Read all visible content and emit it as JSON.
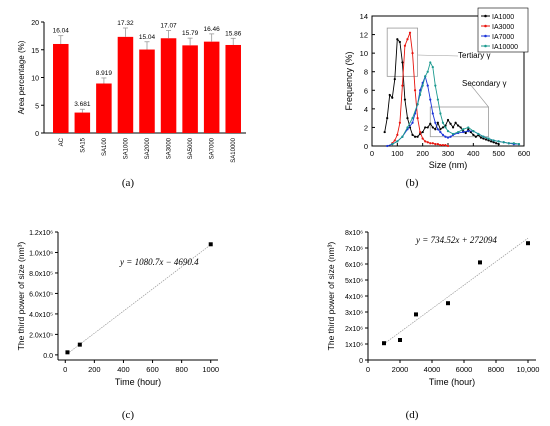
{
  "panels": {
    "a": "(a)",
    "b": "(b)",
    "c": "(c)",
    "d": "(d)"
  },
  "colors": {
    "bar": "#ff0000",
    "ia1000": "#000000",
    "ia3000": "#e8150e",
    "ia7000": "#1c35d8",
    "ia10000": "#1b9a8f",
    "trend": "#999999"
  },
  "chart_data": [
    {
      "id": "a",
      "type": "bar",
      "ylabel": "Area percentage (%)",
      "ylim": [
        0,
        20
      ],
      "yticks": [
        "0",
        "5",
        "10",
        "15",
        "20"
      ],
      "categories": [
        "AC",
        "SA15",
        "SA100",
        "SA1000",
        "SA2000",
        "SA3000",
        "SA5000",
        "SA7000",
        "SA10000"
      ],
      "values": [
        16.04,
        3.681,
        8.919,
        17.32,
        15.04,
        17.07,
        15.79,
        16.46,
        15.86
      ],
      "value_labels": [
        "16.04",
        "3.681",
        "8.919",
        "17.32",
        "15.04",
        "17.07",
        "15.79",
        "16.46",
        "15.86"
      ],
      "errors": [
        1.5,
        0.6,
        1.0,
        1.6,
        1.4,
        1.4,
        1.3,
        1.4,
        1.2
      ]
    },
    {
      "id": "b",
      "type": "line",
      "xlabel": "Size (nm)",
      "ylabel": "Frequency (%)",
      "xlim": [
        0,
        600
      ],
      "ylim": [
        0,
        14
      ],
      "xticks": [
        "0",
        "100",
        "200",
        "300",
        "400",
        "500",
        "600"
      ],
      "yticks": [
        "0",
        "2",
        "4",
        "6",
        "8",
        "10",
        "12",
        "14"
      ],
      "legend": "top-right",
      "series": [
        {
          "name": "IA1000",
          "x": [
            50,
            60,
            70,
            80,
            90,
            100,
            110,
            120,
            130,
            140,
            150,
            160,
            170,
            180,
            190,
            200,
            210,
            220,
            230,
            240,
            250,
            260,
            270,
            280,
            290,
            300,
            310,
            320,
            330,
            340,
            350,
            360,
            370,
            380,
            390,
            400,
            410,
            420,
            430,
            440,
            450,
            460,
            470,
            480,
            490,
            500
          ],
          "y": [
            1.5,
            3.0,
            5.5,
            5.2,
            7.2,
            11.5,
            11.2,
            9.0,
            5.0,
            3.0,
            2.0,
            1.2,
            1.0,
            1.0,
            1.3,
            1.5,
            2.0,
            2.0,
            2.4,
            2.0,
            1.8,
            2.5,
            1.8,
            2.0,
            2.2,
            2.8,
            2.4,
            2.0,
            2.5,
            2.2,
            2.0,
            1.6,
            1.4,
            1.8,
            1.5,
            1.2,
            1.0,
            1.2,
            0.9,
            0.8,
            0.7,
            0.6,
            0.5,
            0.4,
            0.3,
            0.2
          ]
        },
        {
          "name": "IA3000",
          "x": [
            80,
            90,
            100,
            110,
            120,
            130,
            140,
            150,
            160,
            170,
            180,
            190,
            200,
            210,
            220,
            230,
            240,
            250,
            260,
            270,
            280,
            290,
            300
          ],
          "y": [
            0.3,
            0.6,
            1.2,
            2.5,
            6.5,
            10.8,
            11.5,
            12.2,
            10.0,
            6.0,
            3.0,
            1.5,
            0.8,
            0.5,
            0.4,
            0.3,
            0.3,
            0.2,
            0.2,
            0.1,
            0.1,
            0.1,
            0.0
          ]
        },
        {
          "name": "IA7000",
          "x": [
            60,
            80,
            100,
            120,
            140,
            160,
            170,
            180,
            190,
            200,
            210,
            220,
            230,
            240,
            250,
            260,
            270,
            280,
            290,
            300,
            310,
            320,
            340,
            360,
            380,
            400,
            420,
            440,
            460,
            480,
            500,
            520,
            540,
            560,
            580
          ],
          "y": [
            0.0,
            0.2,
            0.5,
            1.0,
            1.8,
            2.5,
            3.5,
            4.5,
            6.0,
            6.8,
            7.5,
            6.5,
            5.0,
            3.5,
            2.5,
            1.8,
            1.5,
            1.2,
            1.0,
            0.9,
            1.0,
            1.2,
            1.4,
            1.5,
            1.6,
            1.6,
            1.3,
            1.0,
            0.8,
            0.6,
            0.5,
            0.4,
            0.3,
            0.2,
            0.2
          ]
        },
        {
          "name": "IA10000",
          "x": [
            80,
            100,
            120,
            140,
            160,
            180,
            190,
            200,
            210,
            220,
            230,
            240,
            250,
            260,
            270,
            280,
            290,
            300,
            320,
            340,
            360,
            380,
            400,
            420,
            440,
            460,
            480,
            500,
            520,
            540,
            560,
            580
          ],
          "y": [
            0.2,
            0.5,
            1.0,
            2.0,
            3.0,
            4.5,
            5.5,
            6.5,
            7.5,
            8.0,
            9.0,
            8.5,
            6.5,
            5.0,
            3.5,
            2.5,
            2.0,
            1.6,
            1.3,
            1.5,
            1.8,
            2.0,
            1.6,
            1.3,
            1.0,
            0.8,
            0.6,
            0.5,
            0.4,
            0.3,
            0.3,
            0.2
          ]
        }
      ],
      "annotations": [
        "Tertiary γ",
        "Secondary γ"
      ]
    },
    {
      "id": "c",
      "type": "scatter",
      "xlabel": "Time (hour)",
      "ylabel": "The third power of size (nm³)",
      "xlim": [
        -50,
        1050
      ],
      "ylim": [
        -50000,
        1200000
      ],
      "xticks": [
        "0",
        "200",
        "400",
        "600",
        "800",
        "1000"
      ],
      "yticks": [
        "0.0",
        "2.0x10⁵",
        "4.0x10⁵",
        "6.0x10⁵",
        "8.0x10⁵",
        "1.0x10⁶",
        "1.2x10⁶"
      ],
      "points": [
        {
          "x": 15,
          "y": 25000
        },
        {
          "x": 100,
          "y": 100000
        },
        {
          "x": 1000,
          "y": 1080000
        }
      ],
      "fit": {
        "slope": 1080.7,
        "intercept": -4690.4
      },
      "equation": "y = 1080.7x − 4690.4"
    },
    {
      "id": "d",
      "type": "scatter",
      "xlabel": "Time (hour)",
      "ylabel": "The third power of size (nm³)",
      "xlim": [
        0,
        10500
      ],
      "ylim": [
        0,
        8000000
      ],
      "xticks": [
        "0",
        "2000",
        "4000",
        "6000",
        "8000",
        "10,000"
      ],
      "yticks": [
        "0",
        "1x10⁶",
        "2x10⁶",
        "3x10⁶",
        "4x10⁶",
        "5x10⁶",
        "6x10⁶",
        "7x10⁶",
        "8x10⁶"
      ],
      "points": [
        {
          "x": 1000,
          "y": 1050000
        },
        {
          "x": 2000,
          "y": 1250000
        },
        {
          "x": 3000,
          "y": 2850000
        },
        {
          "x": 5000,
          "y": 3550000
        },
        {
          "x": 7000,
          "y": 6100000
        },
        {
          "x": 10000,
          "y": 7300000
        }
      ],
      "fit": {
        "slope": 734.52,
        "intercept": 272094
      },
      "equation": "y = 734.52x + 272094"
    }
  ]
}
